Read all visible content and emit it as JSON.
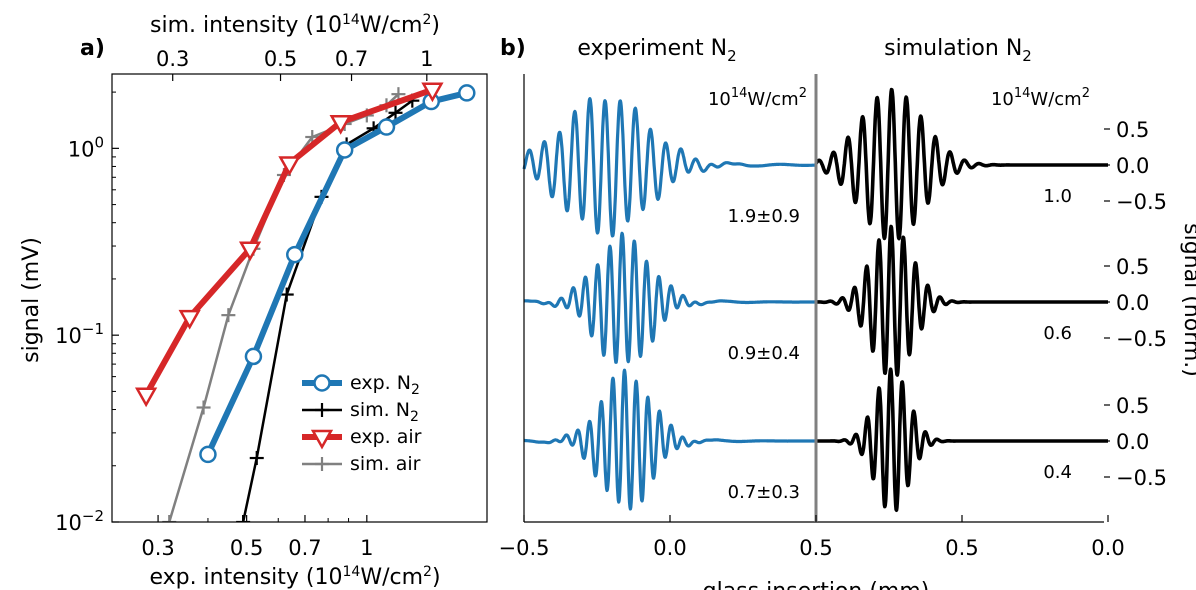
{
  "colors": {
    "exp_n2": "#1f77b4",
    "sim_n2": "#000000",
    "exp_air": "#d62728",
    "sim_air": "#808080",
    "divider": "#808080"
  },
  "chart_data": [
    {
      "type": "line",
      "panel": "a)",
      "xscale": "log",
      "yscale": "log",
      "xlabel": "exp. intensity (10¹⁴W/cm²)",
      "ylabel": "signal (mV)",
      "top_xlabel": "sim. intensity (10¹⁴W/cm²)",
      "xlim": [
        0.23,
        2.0
      ],
      "ylim": [
        0.01,
        2.5
      ],
      "xticks": [
        {
          "v": 0.3,
          "label": "0.3"
        },
        {
          "v": 0.5,
          "label": "0.5"
        },
        {
          "v": 0.7,
          "label": "0.7"
        },
        {
          "v": 1.0,
          "label": "1"
        }
      ],
      "top_xticks": [
        {
          "v": 0.3,
          "label": "0.3"
        },
        {
          "v": 0.5,
          "label": "0.5"
        },
        {
          "v": 0.7,
          "label": "0.7"
        },
        {
          "v": 1.0,
          "label": "1"
        }
      ],
      "top_xlim": [
        0.225,
        1.33
      ],
      "yticks": [
        {
          "v": 0.01,
          "base": "10",
          "exp": "−2"
        },
        {
          "v": 0.1,
          "base": "10",
          "exp": "−1"
        },
        {
          "v": 1,
          "base": "10",
          "exp": "0"
        }
      ],
      "legend_position": "lower-right",
      "series": [
        {
          "name": "exp. N₂",
          "label_main": "exp. N",
          "label_sub": "2",
          "color": "#1f77b4",
          "marker": "circle",
          "linewidth": 6,
          "x": [
            0.4,
            0.52,
            0.66,
            0.88,
            1.12,
            1.45,
            1.78
          ],
          "y": [
            0.023,
            0.077,
            0.27,
            0.98,
            1.3,
            1.78,
            1.98
          ]
        },
        {
          "name": "sim. N₂",
          "label_main": "sim. N",
          "label_sub": "2",
          "color": "#000000",
          "marker": "plus",
          "linewidth": 2.5,
          "x": [
            0.49,
            0.53,
            0.63,
            0.77,
            0.89,
            1.04,
            1.18,
            1.3
          ],
          "y": [
            0.01,
            0.022,
            0.165,
            0.55,
            1.05,
            1.28,
            1.55,
            1.8
          ]
        },
        {
          "name": "exp. air",
          "label_main": "exp. air",
          "label_sub": "",
          "color": "#d62728",
          "marker": "triangle-down",
          "linewidth": 6,
          "x": [
            0.28,
            0.36,
            0.51,
            0.64,
            0.86,
            1.46
          ],
          "y": [
            0.048,
            0.125,
            0.29,
            0.83,
            1.38,
            2.06
          ]
        },
        {
          "name": "sim. air",
          "label_main": "sim. air",
          "label_sub": "",
          "color": "#808080",
          "marker": "plus",
          "linewidth": 2.5,
          "x": [
            0.32,
            0.39,
            0.45,
            0.52,
            0.62,
            0.73,
            0.88,
            1.0,
            1.12,
            1.2
          ],
          "y": [
            0.01,
            0.041,
            0.128,
            0.29,
            0.72,
            1.15,
            1.35,
            1.5,
            1.7,
            1.95
          ]
        }
      ]
    },
    {
      "type": "line",
      "panel": "b)",
      "xlabel": "glass insertion (mm)",
      "ylabel": "signal (norm.)",
      "left_title": "experiment N₂",
      "left_title_main": "experiment N",
      "left_title_sub": "2",
      "right_title": "simulation N₂",
      "right_title_main": "simulation N",
      "right_title_sub": "2",
      "intensity_unit": "10¹⁴W/cm²",
      "xticks_bottom": [
        {
          "v": 0,
          "label": "−0.5"
        },
        {
          "v": 0.5,
          "label": "0.0"
        },
        {
          "v": 1,
          "label": "0.5"
        },
        {
          "v": 1.5,
          "label": "0.5"
        },
        {
          "v": 2,
          "label": "0.0"
        },
        {
          "v": 2.5,
          "label": "0.5"
        }
      ],
      "yticks_right": [
        {
          "v": 0.5,
          "label": "0.5"
        },
        {
          "v": 0.0,
          "label": "0.0"
        },
        {
          "v": -0.5,
          "label": "−0.5"
        }
      ],
      "rows": [
        {
          "exp_intensity": "1.9±0.9",
          "sim_intensity": "1.0",
          "exp": {
            "amp": 0.95,
            "center": -0.22,
            "width": 0.2,
            "period": 0.052,
            "phase": 0.3
          },
          "sim": {
            "amp": 1.05,
            "center": -0.24,
            "width": 0.15,
            "period": 0.05,
            "phase": 0.1
          }
        },
        {
          "exp_intensity": "0.9±0.4",
          "sim_intensity": "0.6",
          "exp": {
            "amp": 0.9,
            "center": -0.16,
            "width": 0.13,
            "period": 0.042,
            "phase": 0.6
          },
          "sim": {
            "amp": 1.05,
            "center": -0.24,
            "width": 0.1,
            "period": 0.042,
            "phase": 0.4
          }
        },
        {
          "exp_intensity": "0.7±0.3",
          "sim_intensity": "0.4",
          "exp": {
            "amp": 0.95,
            "center": -0.15,
            "width": 0.12,
            "period": 0.04,
            "phase": 0.9
          },
          "sim": {
            "amp": 1.0,
            "center": -0.24,
            "width": 0.08,
            "period": 0.04,
            "phase": 0.7
          }
        }
      ]
    }
  ]
}
